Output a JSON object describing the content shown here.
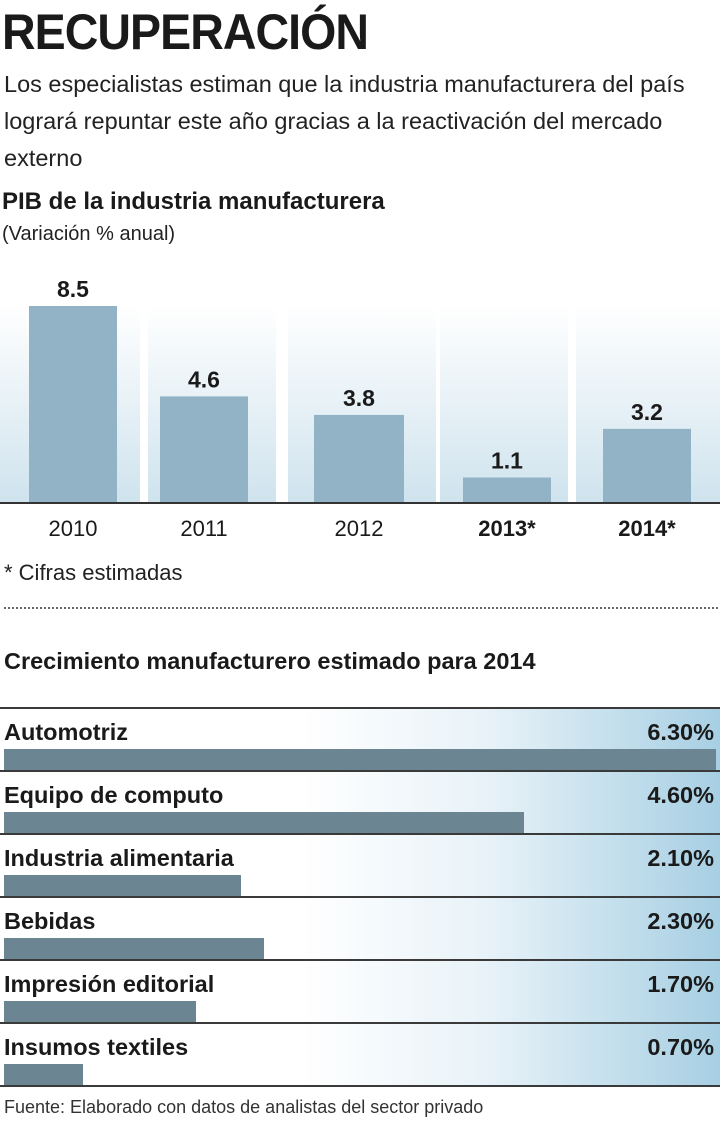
{
  "header": {
    "title": "RECUPERACIÓN",
    "subtitle": "Los especialistas estiman que la industria manufacturera del país logrará repuntar este año gracias a la reactivación del mercado externo"
  },
  "colors": {
    "bar": "#92b3c6",
    "growth_bar": "#6b8593",
    "highlight_gradient_end": "#a7cfe3",
    "text": "#1a1a1a"
  },
  "chart_data": [
    {
      "type": "bar",
      "title": "PIB de la industria manufacturera",
      "subtitle": "(Variación % anual)",
      "categories": [
        "2010",
        "2011",
        "2012",
        "2013*",
        "2014*"
      ],
      "values": [
        8.5,
        4.6,
        3.8,
        1.1,
        3.2
      ],
      "value_labels": [
        "8.5",
        "4.6",
        "3.8",
        "1.1",
        "3.2"
      ],
      "bold_categories": [
        false,
        false,
        false,
        true,
        true
      ],
      "xlabel": "",
      "ylabel": "",
      "ylim": [
        0,
        8.5
      ]
    },
    {
      "type": "bar",
      "orientation": "horizontal",
      "title": "Crecimiento manufacturero estimado para 2014",
      "categories": [
        "Automotriz",
        "Equipo de computo",
        "Industria alimentaria",
        "Bebidas",
        "Impresión editorial",
        "Insumos textiles"
      ],
      "values": [
        6.3,
        4.6,
        2.1,
        2.3,
        1.7,
        0.7
      ],
      "value_labels": [
        "6.30%",
        "4.60%",
        "2.10%",
        "2.30%",
        "1.70%",
        "0.70%"
      ],
      "xlim": [
        0,
        6.3
      ]
    }
  ],
  "footnote": "* Cifras estimadas",
  "source": "Fuente: Elaborado con datos de analistas del sector privado"
}
